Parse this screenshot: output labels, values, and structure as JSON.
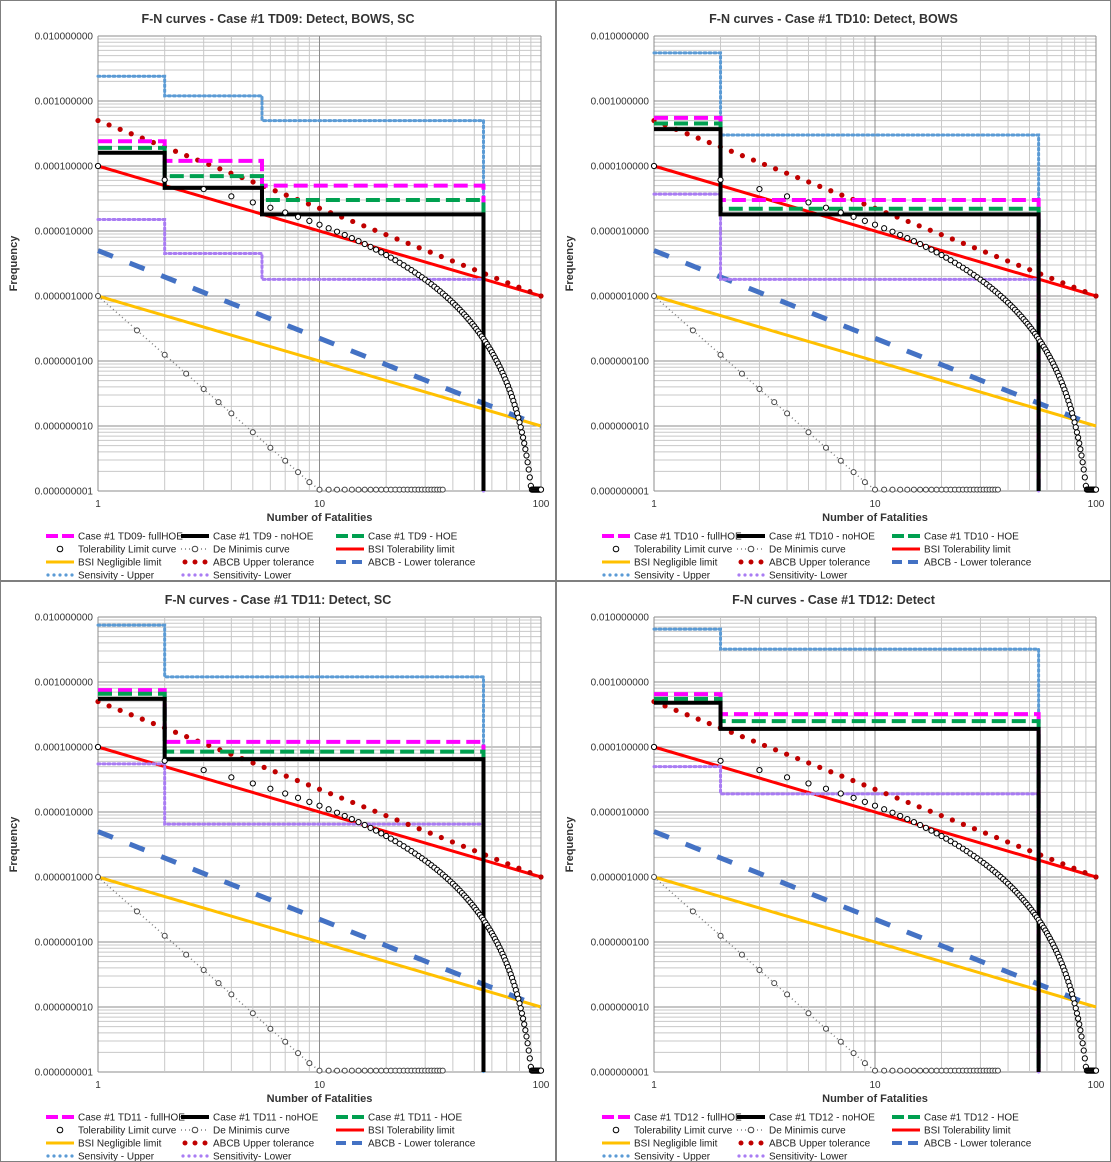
{
  "shared": {
    "ytick_labels": [
      "0.010000000",
      "0.001000000",
      "0.000100000",
      "0.000010000",
      "0.000001000",
      "0.000000100",
      "0.000000010",
      "0.000000001"
    ],
    "xtick_labels": [
      "1",
      "10",
      "100"
    ],
    "xlabel": "Number of Fatalities",
    "ylabel": "Frequency",
    "colors": {
      "fullHOE": "#ff00ff",
      "noHOE": "#000000",
      "HOE": "#00a050",
      "tolerability_curve": "#000000",
      "de_minimis": "#7f7f7f",
      "bsi_tolerability": "#ff0000",
      "bsi_negligible": "#ffc000",
      "abcb_upper": "#c00000",
      "abcb_lower": "#4472c4",
      "sens_upper": "#5b9bd5",
      "sens_lower": "#a97cf3"
    }
  },
  "chart_data": [
    {
      "type": "line",
      "title": "F-N curves - Case #1 TD09: Detect, BOWS, SC",
      "xlabel": "Number of Fatalities",
      "ylabel": "Frequency",
      "x_scale": "log",
      "y_scale": "log",
      "xlim": [
        1,
        100
      ],
      "ylim": [
        1e-09,
        0.01
      ],
      "legend": "bottom",
      "series": [
        {
          "name": "Case #1 TD09- fullHOE",
          "step": [
            [
              1,
              0.00024
            ],
            [
              2,
              0.00012
            ],
            [
              5.5,
              5e-05
            ],
            [
              55,
              1e-09
            ]
          ]
        },
        {
          "name": "Case #1 TD9 - noHOE",
          "step": [
            [
              1,
              0.00016
            ],
            [
              2,
              4.6e-05
            ],
            [
              5.5,
              1.8e-05
            ],
            [
              55,
              1e-09
            ]
          ]
        },
        {
          "name": "Case #1 TD9 - HOE",
          "step": [
            [
              1,
              0.00019
            ],
            [
              2,
              7e-05
            ],
            [
              5.5,
              3e-05
            ],
            [
              55,
              1e-09
            ]
          ]
        },
        {
          "name": "Tolerability Limit curve",
          "formula": "1e-4 * (1 - log10(N)/2)^3"
        },
        {
          "name": "De Minimis curve",
          "formula": "1e-6 * N^-3"
        },
        {
          "name": "BSI Tolerability limit",
          "from": [
            1,
            0.0001
          ],
          "to": [
            100,
            1e-06
          ]
        },
        {
          "name": "BSI Negligible limit",
          "from": [
            1,
            1e-06
          ],
          "to": [
            100,
            1e-08
          ]
        },
        {
          "name": "ABCB Upper tolerance",
          "from": [
            1,
            0.0005
          ],
          "to": [
            100,
            1e-06
          ]
        },
        {
          "name": "ABCB - Lower tolerance",
          "from": [
            1,
            5e-06
          ],
          "to": [
            100,
            1e-08
          ]
        },
        {
          "name": "Sensivity - Upper",
          "step": [
            [
              1,
              0.0024
            ],
            [
              2,
              0.0012
            ],
            [
              5.5,
              0.0005
            ],
            [
              55,
              1e-09
            ]
          ]
        },
        {
          "name": "Sensitivity- Lower",
          "step": [
            [
              1,
              1.5e-05
            ],
            [
              2,
              4.5e-06
            ],
            [
              5.5,
              1.8e-06
            ],
            [
              55,
              1e-09
            ]
          ]
        }
      ]
    },
    {
      "type": "line",
      "title": "F-N curves - Case #1 TD10: Detect, BOWS",
      "xlabel": "Number of Fatalities",
      "ylabel": "Frequency",
      "x_scale": "log",
      "y_scale": "log",
      "xlim": [
        1,
        100
      ],
      "ylim": [
        1e-09,
        0.01
      ],
      "legend": "bottom",
      "series": [
        {
          "name": "Case #1 TD10 - fullHOE",
          "step": [
            [
              1,
              0.00055
            ],
            [
              2,
              3e-05
            ],
            [
              55,
              1e-09
            ]
          ]
        },
        {
          "name": "Case #1 TD10 - noHOE",
          "step": [
            [
              1,
              0.00037
            ],
            [
              2,
              1.8e-05
            ],
            [
              55,
              1e-09
            ]
          ]
        },
        {
          "name": "Case #1 TD10 - HOE",
          "step": [
            [
              1,
              0.00045
            ],
            [
              2,
              2.2e-05
            ],
            [
              55,
              1e-09
            ]
          ]
        },
        {
          "name": "Tolerability Limit curve",
          "formula": "1e-4 * (1 - log10(N)/2)^3"
        },
        {
          "name": "De Minimis curve",
          "formula": "1e-6 * N^-3"
        },
        {
          "name": "BSI Tolerability limit",
          "from": [
            1,
            0.0001
          ],
          "to": [
            100,
            1e-06
          ]
        },
        {
          "name": "BSI Negligible limit",
          "from": [
            1,
            1e-06
          ],
          "to": [
            100,
            1e-08
          ]
        },
        {
          "name": "ABCB Upper tolerance",
          "from": [
            1,
            0.0005
          ],
          "to": [
            100,
            1e-06
          ]
        },
        {
          "name": "ABCB - Lower tolerance",
          "from": [
            1,
            5e-06
          ],
          "to": [
            100,
            1e-08
          ]
        },
        {
          "name": "Sensivity - Upper",
          "step": [
            [
              1,
              0.0055
            ],
            [
              2,
              0.0003
            ],
            [
              55,
              1e-09
            ]
          ]
        },
        {
          "name": "Sensitivity- Lower",
          "step": [
            [
              1,
              3.7e-05
            ],
            [
              2,
              1.8e-06
            ],
            [
              55,
              1e-09
            ]
          ]
        }
      ]
    },
    {
      "type": "line",
      "title": "F-N curves - Case #1 TD11: Detect, SC",
      "xlabel": "Number of Fatalities",
      "ylabel": "Frequency",
      "x_scale": "log",
      "y_scale": "log",
      "xlim": [
        1,
        100
      ],
      "ylim": [
        1e-09,
        0.01
      ],
      "legend": "bottom",
      "series": [
        {
          "name": "Case #1 TD11 - fullHOE",
          "step": [
            [
              1,
              0.00075
            ],
            [
              2,
              0.00012
            ],
            [
              55,
              1e-09
            ]
          ]
        },
        {
          "name": "Case #1 TD11 - noHOE",
          "step": [
            [
              1,
              0.00055
            ],
            [
              2,
              6.5e-05
            ],
            [
              55,
              1e-09
            ]
          ]
        },
        {
          "name": "Case #1 TD11 - HOE",
          "step": [
            [
              1,
              0.00066
            ],
            [
              2,
              8.5e-05
            ],
            [
              55,
              1e-09
            ]
          ]
        },
        {
          "name": "Tolerability Limit curve",
          "formula": "1e-4 * (1 - log10(N)/2)^3"
        },
        {
          "name": "De Minimis curve",
          "formula": "1e-6 * N^-3"
        },
        {
          "name": "BSI Tolerability limit",
          "from": [
            1,
            0.0001
          ],
          "to": [
            100,
            1e-06
          ]
        },
        {
          "name": "BSI Negligible limit",
          "from": [
            1,
            1e-06
          ],
          "to": [
            100,
            1e-08
          ]
        },
        {
          "name": "ABCB Upper tolerance",
          "from": [
            1,
            0.0005
          ],
          "to": [
            100,
            1e-06
          ]
        },
        {
          "name": "ABCB - Lower tolerance",
          "from": [
            1,
            5e-06
          ],
          "to": [
            100,
            1e-08
          ]
        },
        {
          "name": "Sensivity - Upper",
          "step": [
            [
              1,
              0.0075
            ],
            [
              2,
              0.0012
            ],
            [
              55,
              1e-09
            ]
          ]
        },
        {
          "name": "Sensitivity- Lower",
          "step": [
            [
              1,
              5.5e-05
            ],
            [
              2,
              6.5e-06
            ],
            [
              55,
              1e-09
            ]
          ]
        }
      ]
    },
    {
      "type": "line",
      "title": "F-N curves - Case #1 TD12: Detect",
      "xlabel": "Number of Fatalities",
      "ylabel": "Frequency",
      "x_scale": "log",
      "y_scale": "log",
      "xlim": [
        1,
        100
      ],
      "ylim": [
        1e-09,
        0.01
      ],
      "legend": "bottom",
      "series": [
        {
          "name": "Case #1 TD12 - fullHOE",
          "step": [
            [
              1,
              0.00065
            ],
            [
              2,
              0.00032
            ],
            [
              55,
              1e-09
            ]
          ]
        },
        {
          "name": "Case #1 TD12 - noHOE",
          "step": [
            [
              1,
              0.00048
            ],
            [
              2,
              0.00019
            ],
            [
              55,
              1e-09
            ]
          ]
        },
        {
          "name": "Case #1 TD12 - HOE",
          "step": [
            [
              1,
              0.00055
            ],
            [
              2,
              0.00025
            ],
            [
              55,
              1e-09
            ]
          ]
        },
        {
          "name": "Tolerability Limit curve",
          "formula": "1e-4 * (1 - log10(N)/2)^3"
        },
        {
          "name": "De Minimis curve",
          "formula": "1e-6 * N^-3"
        },
        {
          "name": "BSI Tolerability limit",
          "from": [
            1,
            0.0001
          ],
          "to": [
            100,
            1e-06
          ]
        },
        {
          "name": "BSI Negligible limit",
          "from": [
            1,
            1e-06
          ],
          "to": [
            100,
            1e-08
          ]
        },
        {
          "name": "ABCB Upper tolerance",
          "from": [
            1,
            0.0005
          ],
          "to": [
            100,
            1e-06
          ]
        },
        {
          "name": "ABCB - Lower tolerance",
          "from": [
            1,
            5e-06
          ],
          "to": [
            100,
            1e-08
          ]
        },
        {
          "name": "Sensivity - Upper",
          "step": [
            [
              1,
              0.0065
            ],
            [
              2,
              0.0032
            ],
            [
              55,
              1e-09
            ]
          ]
        },
        {
          "name": "Sensitivity- Lower",
          "step": [
            [
              1,
              5e-05
            ],
            [
              2,
              1.9e-05
            ],
            [
              55,
              1e-09
            ]
          ]
        }
      ]
    }
  ]
}
